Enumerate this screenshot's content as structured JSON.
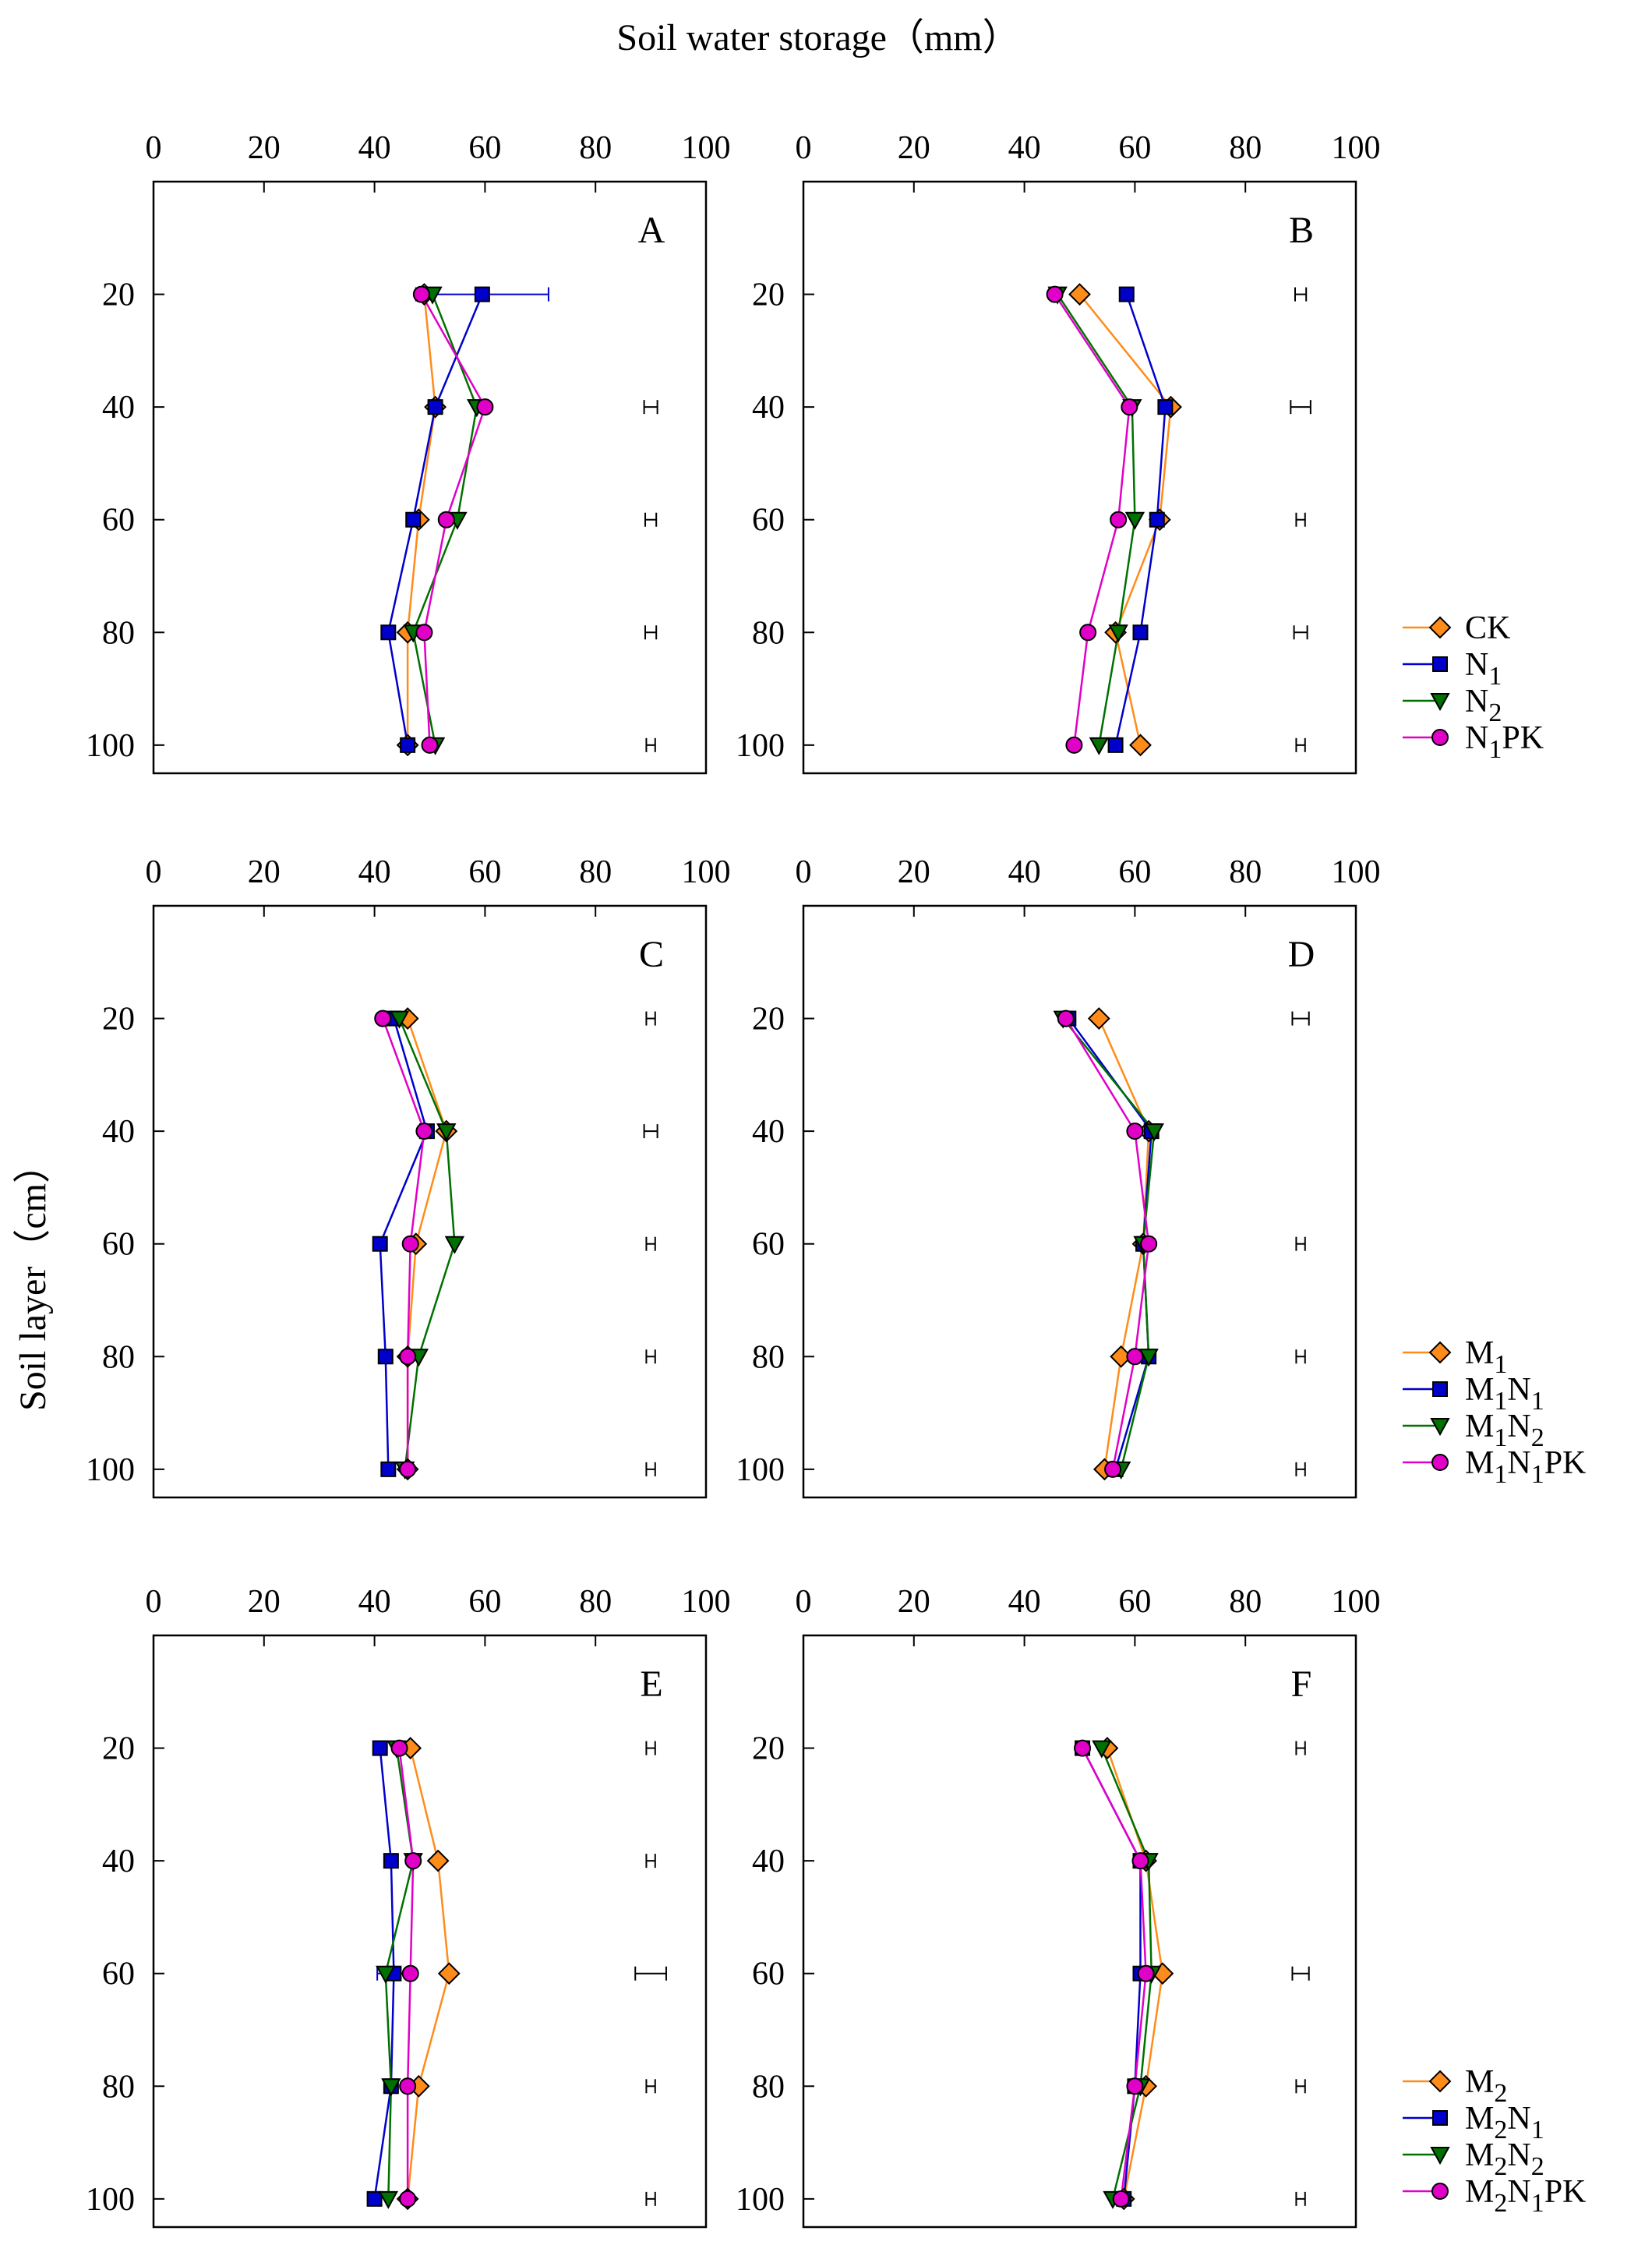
{
  "figure": {
    "xlabel": "Soil water storage（mm）",
    "ylabel": "Soil layer（cm）",
    "x_ticks": [
      "0",
      "20",
      "40",
      "60",
      "80",
      "100"
    ],
    "y_ticks": [
      "20",
      "40",
      "60",
      "80",
      "100"
    ]
  },
  "legends": [
    {
      "entries": [
        {
          "base": "CK",
          "sub": "",
          "tail": "",
          "color": "#FF8C1A",
          "marker": "diamond"
        },
        {
          "base": "N",
          "sub": "1",
          "tail": "",
          "color": "#0000CC",
          "marker": "square"
        },
        {
          "base": "N",
          "sub": "2",
          "tail": "",
          "color": "#007000",
          "marker": "triangle-down"
        },
        {
          "base": "N",
          "sub": "1",
          "tail": "PK",
          "color": "#E000C8",
          "marker": "circle"
        }
      ]
    },
    {
      "entries": [
        {
          "base": "M",
          "sub": "1",
          "tail": "",
          "color": "#FF8C1A",
          "marker": "diamond"
        },
        {
          "base": "M",
          "sub": "1",
          "tail": "N",
          "sub2": "1",
          "tail2": "",
          "color": "#0000CC",
          "marker": "square"
        },
        {
          "base": "M",
          "sub": "1",
          "tail": "N",
          "sub2": "2",
          "tail2": "",
          "color": "#007000",
          "marker": "triangle-down"
        },
        {
          "base": "M",
          "sub": "1",
          "tail": "N",
          "sub2": "1",
          "tail2": "PK",
          "color": "#E000C8",
          "marker": "circle"
        }
      ]
    },
    {
      "entries": [
        {
          "base": "M",
          "sub": "2",
          "tail": "",
          "color": "#FF8C1A",
          "marker": "diamond"
        },
        {
          "base": "M",
          "sub": "2",
          "tail": "N",
          "sub2": "1",
          "tail2": "",
          "color": "#0000CC",
          "marker": "square"
        },
        {
          "base": "M",
          "sub": "2",
          "tail": "N",
          "sub2": "2",
          "tail2": "",
          "color": "#007000",
          "marker": "triangle-down"
        },
        {
          "base": "M",
          "sub": "2",
          "tail": "N",
          "sub2": "1",
          "tail2": "PK",
          "color": "#E000C8",
          "marker": "circle"
        }
      ]
    }
  ],
  "chart_data": [
    {
      "type": "line",
      "title": "A",
      "xlim": [
        0,
        100
      ],
      "ylim": [
        0,
        105
      ],
      "depth": [
        20,
        40,
        60,
        80,
        100
      ],
      "series": [
        {
          "name": "CK",
          "color": "#FF8C1A",
          "marker": "diamond",
          "values": [
            49,
            51,
            48,
            46,
            46
          ]
        },
        {
          "name": "N1",
          "color": "#0000CC",
          "marker": "square",
          "values": [
            59.5,
            51,
            47,
            42.5,
            46
          ],
          "err": [
            12,
            0,
            0,
            0,
            0
          ]
        },
        {
          "name": "N2",
          "color": "#007000",
          "marker": "triangle-down",
          "values": [
            50.5,
            58.5,
            55,
            47,
            51
          ]
        },
        {
          "name": "N1PK",
          "color": "#E000C8",
          "marker": "circle",
          "values": [
            48.5,
            60,
            53,
            49,
            50
          ]
        }
      ],
      "lsd": [
        null,
        1.2,
        1.0,
        1.0,
        0.8
      ]
    },
    {
      "type": "line",
      "title": "B",
      "xlim": [
        0,
        100
      ],
      "ylim": [
        0,
        105
      ],
      "depth": [
        20,
        40,
        60,
        80,
        100
      ],
      "series": [
        {
          "name": "CK",
          "color": "#FF8C1A",
          "marker": "diamond",
          "values": [
            50,
            66.5,
            64.5,
            56.5,
            61
          ]
        },
        {
          "name": "N1",
          "color": "#0000CC",
          "marker": "square",
          "values": [
            58.5,
            65.5,
            64,
            61,
            56.5
          ]
        },
        {
          "name": "N2",
          "color": "#007000",
          "marker": "triangle-down",
          "values": [
            46,
            59.5,
            60,
            57,
            53.5
          ]
        },
        {
          "name": "N1PK",
          "color": "#E000C8",
          "marker": "circle",
          "values": [
            45.5,
            59,
            57,
            51.5,
            49
          ]
        }
      ],
      "lsd": [
        1.0,
        1.8,
        0.8,
        1.2,
        0.8
      ]
    },
    {
      "type": "line",
      "title": "C",
      "xlim": [
        0,
        100
      ],
      "ylim": [
        0,
        105
      ],
      "depth": [
        20,
        40,
        60,
        80,
        100
      ],
      "series": [
        {
          "name": "M1",
          "color": "#FF8C1A",
          "marker": "diamond",
          "values": [
            46,
            53,
            47.5,
            46,
            46
          ]
        },
        {
          "name": "M1N1",
          "color": "#0000CC",
          "marker": "square",
          "values": [
            43.5,
            49.5,
            41,
            42,
            42.5
          ]
        },
        {
          "name": "M1N2",
          "color": "#007000",
          "marker": "triangle-down",
          "values": [
            44.5,
            53,
            54.5,
            48,
            45.5
          ]
        },
        {
          "name": "M1N1PK",
          "color": "#E000C8",
          "marker": "circle",
          "values": [
            41.5,
            49,
            46.5,
            46,
            46
          ]
        }
      ],
      "lsd": [
        0.8,
        1.2,
        0.8,
        0.8,
        0.8
      ]
    },
    {
      "type": "line",
      "title": "D",
      "xlim": [
        0,
        100
      ],
      "ylim": [
        0,
        105
      ],
      "depth": [
        20,
        40,
        60,
        80,
        100
      ],
      "series": [
        {
          "name": "M1",
          "color": "#FF8C1A",
          "marker": "diamond",
          "values": [
            53.5,
            62.5,
            61.5,
            57.5,
            54.5
          ]
        },
        {
          "name": "M1N1",
          "color": "#0000CC",
          "marker": "square",
          "values": [
            48,
            63,
            61.5,
            62.5,
            56.5
          ]
        },
        {
          "name": "M1N2",
          "color": "#007000",
          "marker": "triangle-down",
          "values": [
            47,
            63.5,
            61.5,
            62.5,
            57.5
          ]
        },
        {
          "name": "M1N1PK",
          "color": "#E000C8",
          "marker": "circle",
          "values": [
            47.5,
            60,
            62.5,
            60,
            56
          ]
        }
      ],
      "lsd": [
        1.5,
        null,
        0.8,
        0.8,
        0.8
      ]
    },
    {
      "type": "line",
      "title": "E",
      "xlim": [
        0,
        100
      ],
      "ylim": [
        0,
        105
      ],
      "depth": [
        20,
        40,
        60,
        80,
        100
      ],
      "series": [
        {
          "name": "M2",
          "color": "#FF8C1A",
          "marker": "diamond",
          "values": [
            46.5,
            51.5,
            53.5,
            48,
            46
          ]
        },
        {
          "name": "M2N1",
          "color": "#0000CC",
          "marker": "square",
          "values": [
            41,
            43,
            43.5,
            43,
            40
          ],
          "err": [
            0,
            0,
            3,
            0,
            0
          ]
        },
        {
          "name": "M2N2",
          "color": "#007000",
          "marker": "triangle-down",
          "values": [
            44,
            47,
            42,
            43,
            42.5
          ]
        },
        {
          "name": "M2N1PK",
          "color": "#E000C8",
          "marker": "circle",
          "values": [
            44.5,
            47,
            46.5,
            46,
            46
          ]
        }
      ],
      "lsd": [
        0.8,
        0.8,
        2.8,
        0.8,
        0.8
      ]
    },
    {
      "type": "line",
      "title": "F",
      "xlim": [
        0,
        100
      ],
      "ylim": [
        0,
        105
      ],
      "depth": [
        20,
        40,
        60,
        80,
        100
      ],
      "series": [
        {
          "name": "M2",
          "color": "#FF8C1A",
          "marker": "diamond",
          "values": [
            55,
            62,
            65,
            62,
            58
          ]
        },
        {
          "name": "M2N1",
          "color": "#0000CC",
          "marker": "square",
          "values": [
            50.5,
            61,
            61,
            60,
            58
          ]
        },
        {
          "name": "M2N2",
          "color": "#007000",
          "marker": "triangle-down",
          "values": [
            54,
            62.5,
            63,
            61,
            56
          ]
        },
        {
          "name": "M2N1PK",
          "color": "#E000C8",
          "marker": "circle",
          "values": [
            50.5,
            61,
            62,
            60,
            57.5
          ]
        }
      ],
      "lsd": [
        0.8,
        null,
        1.5,
        0.8,
        0.8
      ]
    }
  ]
}
